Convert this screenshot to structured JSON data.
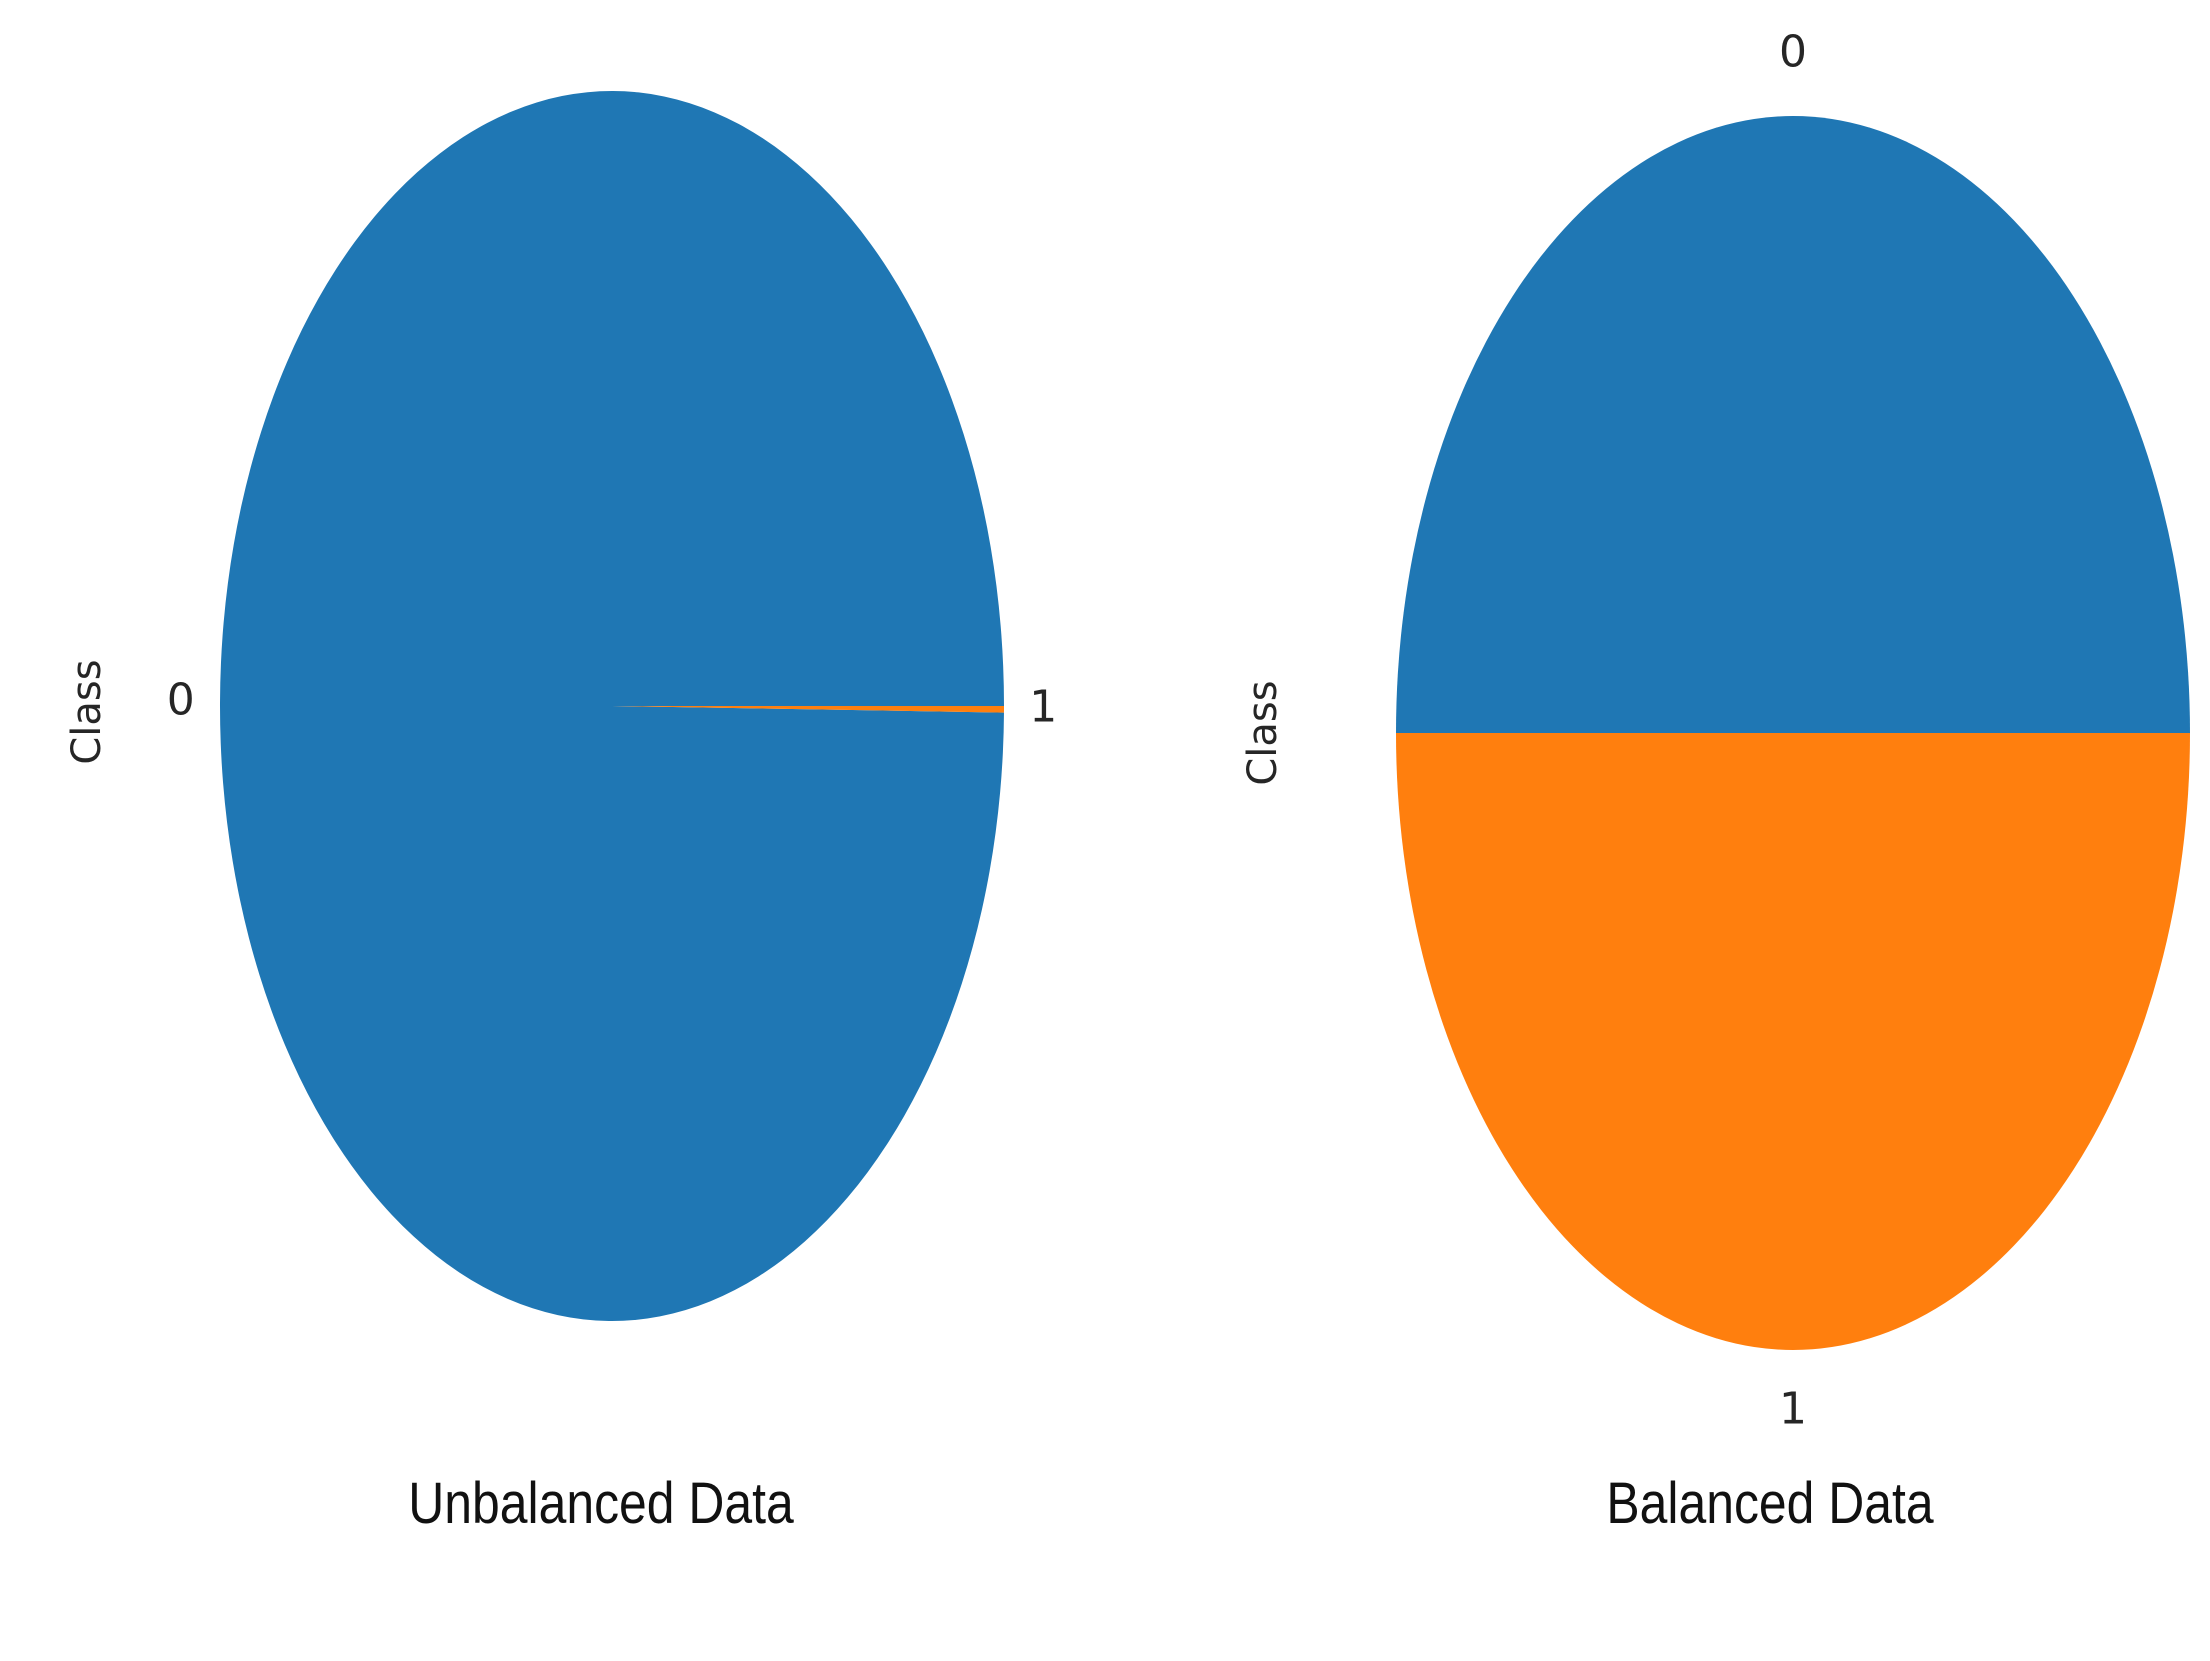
{
  "chart_data": [
    {
      "type": "pie",
      "title": "Unbalanced Data",
      "ylabel": "Class",
      "categories": [
        "0",
        "1"
      ],
      "values": [
        99.83,
        0.17
      ],
      "colors": [
        "#1f77b4",
        "#ff7f0e"
      ]
    },
    {
      "type": "pie",
      "title": "Balanced Data",
      "ylabel": "Class",
      "categories": [
        "0",
        "1"
      ],
      "values": [
        50,
        50
      ],
      "colors": [
        "#1f77b4",
        "#ff7f0e"
      ]
    }
  ]
}
